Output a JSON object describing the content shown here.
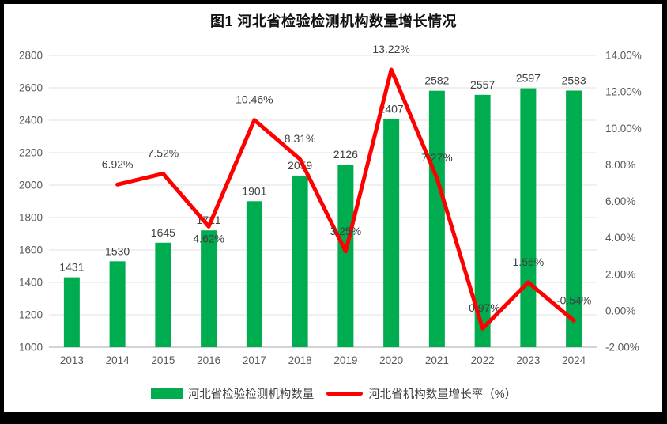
{
  "title": "图1 河北省检验检测机构数量增长情况",
  "legend": [
    {
      "type": "bar",
      "label": "河北省检验检测机构数量",
      "color": "#00AC50"
    },
    {
      "type": "line",
      "label": "河北省机构数量增长率（%）",
      "color": "#FF0000"
    }
  ],
  "colors": {
    "bar": "#00AC50",
    "line": "#FF0000",
    "gridline": "#E0E0E0",
    "axis_line": "#C6C6C6",
    "tick_label": "#595959",
    "data_label": "#404040",
    "frame_border": "#000000",
    "background": "#FFFFFF"
  },
  "chart_data": {
    "type": "bar",
    "subtype": "bar+line combo, dual axis",
    "title": "图1 河北省检验检测机构数量增长情况",
    "categories": [
      "2013",
      "2014",
      "2015",
      "2016",
      "2017",
      "2018",
      "2019",
      "2020",
      "2021",
      "2022",
      "2023",
      "2024"
    ],
    "series": [
      {
        "name": "河北省检验检测机构数量",
        "type": "bar",
        "axis": "left",
        "color": "#00AC50",
        "values": [
          1431,
          1530,
          1645,
          1721,
          1901,
          2059,
          2126,
          2407,
          2582,
          2557,
          2597,
          2583
        ],
        "labels": [
          "1431",
          "1530",
          "1645",
          "1721",
          "1901",
          "2059",
          "2126",
          "2407",
          "2582",
          "2557",
          "2597",
          "2583"
        ]
      },
      {
        "name": "河北省机构数量增长率（%）",
        "type": "line",
        "axis": "right",
        "color": "#FF0000",
        "values": [
          null,
          6.92,
          7.52,
          4.62,
          10.46,
          8.31,
          3.25,
          13.22,
          7.27,
          -0.97,
          1.56,
          -0.54
        ],
        "labels": [
          null,
          "6.92%",
          "7.52%",
          "4.62%",
          "10.46%",
          "8.31%",
          "3.25%",
          "13.22%",
          "7.27%",
          "-0.97%",
          "1.56%",
          "-0.54%"
        ],
        "label_positions": [
          null,
          "above",
          "above",
          "below",
          "above",
          "above",
          "above",
          "above",
          "above",
          "above",
          "above",
          "above"
        ]
      }
    ],
    "left_axis": {
      "min": 1000,
      "max": 2800,
      "step": 200,
      "tick_labels": [
        "1000",
        "1200",
        "1400",
        "1600",
        "1800",
        "2000",
        "2200",
        "2400",
        "2600",
        "2800"
      ]
    },
    "right_axis": {
      "min": -2,
      "max": 14,
      "step": 2,
      "tick_labels": [
        "-2.00%",
        "0.00%",
        "2.00%",
        "4.00%",
        "6.00%",
        "8.00%",
        "10.00%",
        "12.00%",
        "14.00%"
      ]
    },
    "grid": true,
    "legend_position": "bottom",
    "xlabel": "",
    "ylabel": ""
  }
}
